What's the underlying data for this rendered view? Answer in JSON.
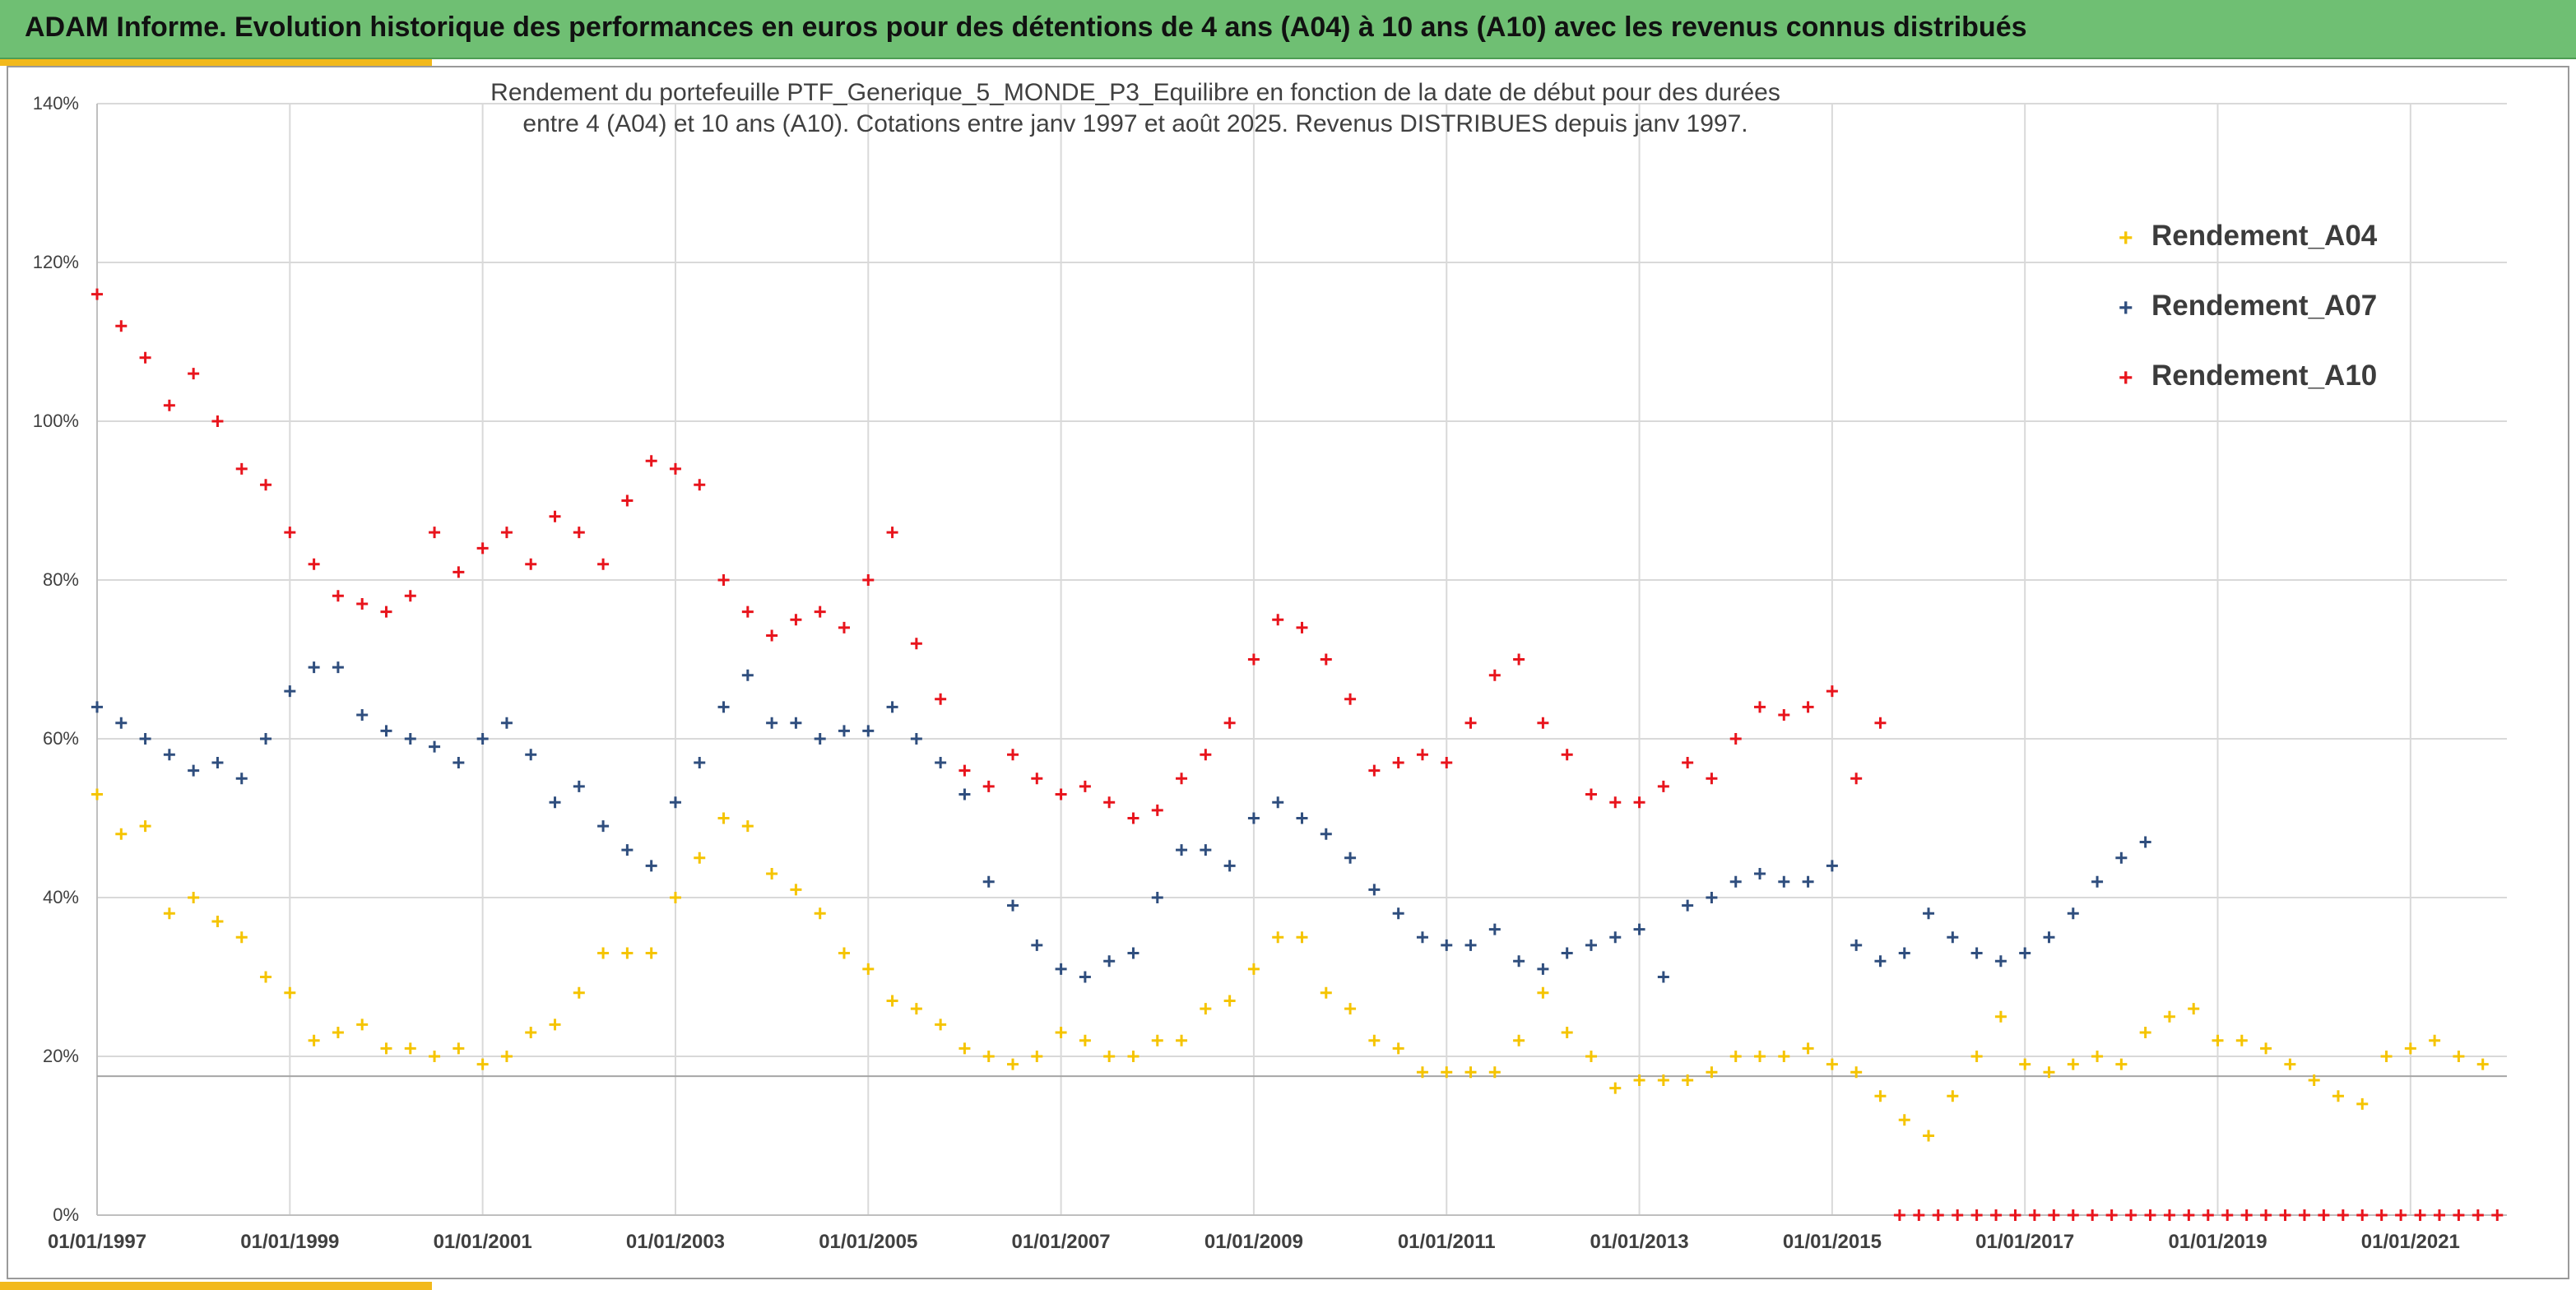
{
  "banner": {
    "title": "ADAM Informe. Evolution historique des performances en euros pour des détentions de 4 ans (A04) à 10 ans (A10) avec les revenus connus distribués"
  },
  "colors": {
    "banner_bg": "#6fbf73",
    "accent": "#f2b91c",
    "A04": "#f5c400",
    "A07": "#2f4e7e",
    "A10": "#e8141c",
    "grid": "#d9d9d9",
    "reference_line": "#a6a6a6"
  },
  "chart_data": {
    "type": "scatter",
    "title_line1": "Rendement du portefeuille PTF_Generique_5_MONDE_P3_Equilibre  en fonction de la date de début pour des durées",
    "title_line2": "entre 4 (A04) et 10 ans (A10). Cotations entre janv 1997 et août 2025. Revenus DISTRIBUES depuis janv 1997.",
    "marker": "+",
    "legend_position": "top-right",
    "grid": true,
    "x_ticks": [
      "01/01/1997",
      "01/01/1999",
      "01/01/2001",
      "01/01/2003",
      "01/01/2005",
      "01/01/2007",
      "01/01/2009",
      "01/01/2011",
      "01/01/2013",
      "01/01/2015",
      "01/01/2017",
      "01/01/2019",
      "01/01/2021"
    ],
    "xlim": [
      "1997-01-01",
      "2022-01-01"
    ],
    "y_ticks": [
      "0%",
      "20%",
      "40%",
      "60%",
      "80%",
      "100%",
      "120%",
      "140%"
    ],
    "ylim": [
      0,
      140
    ],
    "reference_line_y": 17.5,
    "series": [
      {
        "name": "Rendement_A04",
        "color": "#f5c400",
        "x": [
          1997.0,
          1997.25,
          1997.5,
          1997.75,
          1998.0,
          1998.25,
          1998.5,
          1998.75,
          1999.0,
          1999.25,
          1999.5,
          1999.75,
          2000.0,
          2000.25,
          2000.5,
          2000.75,
          2001.0,
          2001.25,
          2001.5,
          2001.75,
          2002.0,
          2002.25,
          2002.5,
          2002.75,
          2003.0,
          2003.25,
          2003.5,
          2003.75,
          2004.0,
          2004.25,
          2004.5,
          2004.75,
          2005.0,
          2005.25,
          2005.5,
          2005.75,
          2006.0,
          2006.25,
          2006.5,
          2006.75,
          2007.0,
          2007.25,
          2007.5,
          2007.75,
          2008.0,
          2008.25,
          2008.5,
          2008.75,
          2009.0,
          2009.25,
          2009.5,
          2009.75,
          2010.0,
          2010.25,
          2010.5,
          2010.75,
          2011.0,
          2011.25,
          2011.5,
          2011.75,
          2012.0,
          2012.25,
          2012.5,
          2012.75,
          2013.0,
          2013.25,
          2013.5,
          2013.75,
          2014.0,
          2014.25,
          2014.5,
          2014.75,
          2015.0,
          2015.25,
          2015.5,
          2015.75,
          2016.0,
          2016.25,
          2016.5,
          2016.75,
          2017.0,
          2017.25,
          2017.5,
          2017.75,
          2018.0,
          2018.25,
          2018.5,
          2018.75,
          2019.0,
          2019.25,
          2019.5,
          2019.75,
          2020.0,
          2020.25,
          2020.5,
          2020.75,
          2021.0,
          2021.25,
          2021.5,
          2021.75
        ],
        "y": [
          53,
          48,
          49,
          38,
          40,
          37,
          35,
          30,
          28,
          22,
          23,
          24,
          21,
          21,
          20,
          21,
          19,
          20,
          23,
          24,
          28,
          33,
          33,
          33,
          40,
          45,
          50,
          49,
          43,
          41,
          38,
          33,
          31,
          27,
          26,
          24,
          21,
          20,
          19,
          20,
          23,
          22,
          20,
          20,
          22,
          22,
          26,
          27,
          31,
          35,
          35,
          28,
          26,
          22,
          21,
          18,
          18,
          18,
          18,
          22,
          28,
          23,
          20,
          16,
          17,
          17,
          17,
          18,
          20,
          20,
          20,
          21,
          19,
          18,
          15,
          12,
          10,
          15,
          20,
          25,
          19,
          18,
          19,
          20,
          19,
          23,
          25,
          26,
          22,
          22,
          21,
          19,
          17,
          15,
          14,
          20,
          21,
          22,
          20,
          19
        ]
      },
      {
        "name": "Rendement_A07",
        "color": "#2f4e7e",
        "x": [
          1997.0,
          1997.25,
          1997.5,
          1997.75,
          1998.0,
          1998.25,
          1998.5,
          1998.75,
          1999.0,
          1999.25,
          1999.5,
          1999.75,
          2000.0,
          2000.25,
          2000.5,
          2000.75,
          2001.0,
          2001.25,
          2001.5,
          2001.75,
          2002.0,
          2002.25,
          2002.5,
          2002.75,
          2003.0,
          2003.25,
          2003.5,
          2003.75,
          2004.0,
          2004.25,
          2004.5,
          2004.75,
          2005.0,
          2005.25,
          2005.5,
          2005.75,
          2006.0,
          2006.25,
          2006.5,
          2006.75,
          2007.0,
          2007.25,
          2007.5,
          2007.75,
          2008.0,
          2008.25,
          2008.5,
          2008.75,
          2009.0,
          2009.25,
          2009.5,
          2009.75,
          2010.0,
          2010.25,
          2010.5,
          2010.75,
          2011.0,
          2011.25,
          2011.5,
          2011.75,
          2012.0,
          2012.25,
          2012.5,
          2012.75,
          2013.0,
          2013.25,
          2013.5,
          2013.75,
          2014.0,
          2014.25,
          2014.5,
          2014.75,
          2015.0,
          2015.25,
          2015.5,
          2015.75,
          2016.0,
          2016.25,
          2016.5,
          2016.75,
          2017.0,
          2017.25,
          2017.5,
          2017.75,
          2018.0,
          2018.25
        ],
        "y": [
          64,
          62,
          60,
          58,
          56,
          57,
          55,
          60,
          66,
          69,
          69,
          63,
          61,
          60,
          59,
          57,
          60,
          62,
          58,
          52,
          54,
          49,
          46,
          44,
          52,
          57,
          64,
          68,
          62,
          62,
          60,
          61,
          61,
          64,
          60,
          57,
          53,
          42,
          39,
          34,
          31,
          30,
          32,
          33,
          40,
          46,
          46,
          44,
          50,
          52,
          50,
          48,
          45,
          41,
          38,
          35,
          34,
          34,
          36,
          32,
          31,
          33,
          34,
          35,
          36,
          30,
          39,
          40,
          42,
          43,
          42,
          42,
          44,
          34,
          32,
          33,
          38,
          35,
          33,
          32,
          33,
          35,
          38,
          42,
          45,
          47
        ]
      },
      {
        "name": "Rendement_A10",
        "color": "#e8141c",
        "x": [
          1997.0,
          1997.25,
          1997.5,
          1997.75,
          1998.0,
          1998.25,
          1998.5,
          1998.75,
          1999.0,
          1999.25,
          1999.5,
          1999.75,
          2000.0,
          2000.25,
          2000.5,
          2000.75,
          2001.0,
          2001.25,
          2001.5,
          2001.75,
          2002.0,
          2002.25,
          2002.5,
          2002.75,
          2003.0,
          2003.25,
          2003.5,
          2003.75,
          2004.0,
          2004.25,
          2004.5,
          2004.75,
          2005.0,
          2005.25,
          2005.5,
          2005.75,
          2006.0,
          2006.25,
          2006.5,
          2006.75,
          2007.0,
          2007.25,
          2007.5,
          2007.75,
          2008.0,
          2008.25,
          2008.5,
          2008.75,
          2009.0,
          2009.25,
          2009.5,
          2009.75,
          2010.0,
          2010.25,
          2010.5,
          2010.75,
          2011.0,
          2011.25,
          2011.5,
          2011.75,
          2012.0,
          2012.25,
          2012.5,
          2012.75,
          2013.0,
          2013.25,
          2013.5,
          2013.75,
          2014.0,
          2014.25,
          2014.5,
          2014.75,
          2015.0,
          2015.25,
          2015.5
        ],
        "y": [
          116,
          112,
          108,
          102,
          106,
          100,
          94,
          92,
          86,
          82,
          78,
          77,
          76,
          78,
          86,
          81,
          84,
          86,
          82,
          88,
          86,
          82,
          90,
          95,
          94,
          92,
          80,
          76,
          73,
          75,
          76,
          74,
          80,
          86,
          72,
          65,
          56,
          54,
          58,
          55,
          53,
          54,
          52,
          50,
          51,
          55,
          58,
          62,
          70,
          75,
          74,
          70,
          65,
          56,
          57,
          58,
          57,
          62,
          68,
          70,
          62,
          58,
          53,
          52,
          52,
          54,
          57,
          55,
          60,
          64,
          63,
          64,
          66,
          55,
          62
        ]
      },
      {
        "name": "",
        "color": "#e8141c",
        "x": [
          2015.7,
          2015.9,
          2016.1,
          2016.3,
          2016.5,
          2016.7,
          2016.9,
          2017.1,
          2017.3,
          2017.5,
          2017.7,
          2017.9,
          2018.1,
          2018.3,
          2018.5,
          2018.7,
          2018.9,
          2019.1,
          2019.3,
          2019.5,
          2019.7,
          2019.9,
          2020.1,
          2020.3,
          2020.5,
          2020.7,
          2020.9,
          2021.1,
          2021.3,
          2021.5,
          2021.7,
          2021.9
        ],
        "y": [
          0,
          0,
          0,
          0,
          0,
          0,
          0,
          0,
          0,
          0,
          0,
          0,
          0,
          0,
          0,
          0,
          0,
          0,
          0,
          0,
          0,
          0,
          0,
          0,
          0,
          0,
          0,
          0,
          0,
          0,
          0,
          0
        ]
      }
    ]
  }
}
